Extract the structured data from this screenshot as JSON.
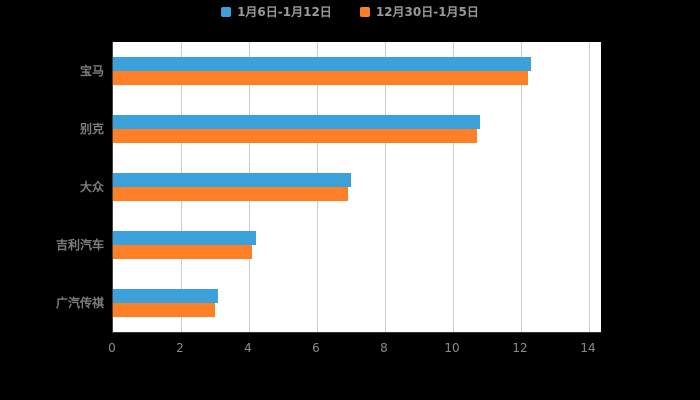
{
  "chart_data": {
    "type": "bar",
    "orientation": "horizontal",
    "title": "",
    "categories": [
      "宝马",
      "别克",
      "大众",
      "吉利汽车",
      "广汽传祺"
    ],
    "series": [
      {
        "name": "1月6日-1月12日",
        "color": "#3BA1DB",
        "values": [
          12.3,
          10.8,
          7.0,
          4.2,
          3.1
        ]
      },
      {
        "name": "12月30日-1月5日",
        "color": "#FF7F27",
        "values": [
          12.2,
          10.7,
          6.9,
          4.1,
          3.0
        ]
      }
    ],
    "x_axis": {
      "min": 0,
      "max": 14,
      "ticks": [
        0,
        2,
        4,
        6,
        8,
        10,
        12,
        14
      ]
    },
    "legend_position": "top",
    "grid": true,
    "plot_background": "#ffffff",
    "page_background": "#000000"
  }
}
